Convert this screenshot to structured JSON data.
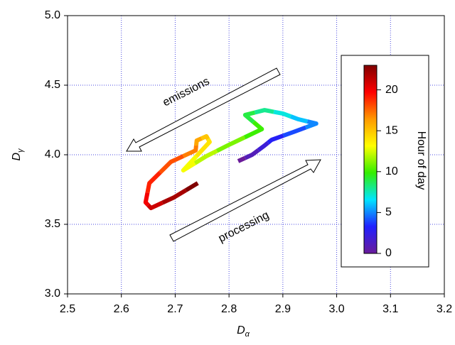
{
  "chart_data": {
    "type": "colored_line",
    "xlabel": {
      "base": "D",
      "sub": "α"
    },
    "ylabel": {
      "base": "D",
      "sub": "γ"
    },
    "series": [
      {
        "x": [
          2.817,
          2.843,
          2.866,
          2.879,
          2.923,
          2.962,
          2.929,
          2.9,
          2.866,
          2.83,
          2.861,
          2.797,
          2.758,
          2.715,
          2.764,
          2.758,
          2.74,
          2.738,
          2.692,
          2.652,
          2.645,
          2.655,
          2.698,
          2.742
        ],
        "values": [
          3.954,
          4.0,
          4.066,
          4.107,
          4.168,
          4.224,
          4.255,
          4.296,
          4.321,
          4.286,
          4.184,
          4.066,
          3.99,
          3.888,
          4.092,
          4.133,
          4.102,
          4.031,
          3.949,
          3.796,
          3.658,
          3.617,
          3.694,
          3.796
        ],
        "hours": [
          0,
          1,
          2,
          3,
          4,
          5,
          6,
          7,
          8,
          9,
          10,
          11,
          12,
          13,
          14,
          15,
          16,
          17,
          18,
          19,
          20,
          21,
          22,
          23
        ]
      }
    ],
    "xlim": [
      2.5,
      3.2
    ],
    "xticks": [
      2.5,
      2.6,
      2.7,
      2.8,
      2.9,
      {
        "value": 3,
        "label": "3.0"
      },
      3.1,
      3.2
    ],
    "ylim": [
      3,
      5
    ],
    "yticks": [
      {
        "value": 3,
        "label": "3.0"
      },
      3.5,
      {
        "value": 4,
        "label": "4.0"
      },
      4.5,
      {
        "value": 5,
        "label": "5.0"
      }
    ],
    "grid": true,
    "colorbar": {
      "label": "Hour of day",
      "lim": [
        0,
        23
      ],
      "ticks": [
        0,
        5,
        10,
        15,
        20
      ],
      "colormap": [
        "#6a1b9a",
        "#2020ff",
        "#00e5ff",
        "#33ee00",
        "#ffff00",
        "#ff9900",
        "#ff0000",
        "#800000"
      ]
    },
    "annotations": [
      "emissions",
      "processing"
    ]
  }
}
